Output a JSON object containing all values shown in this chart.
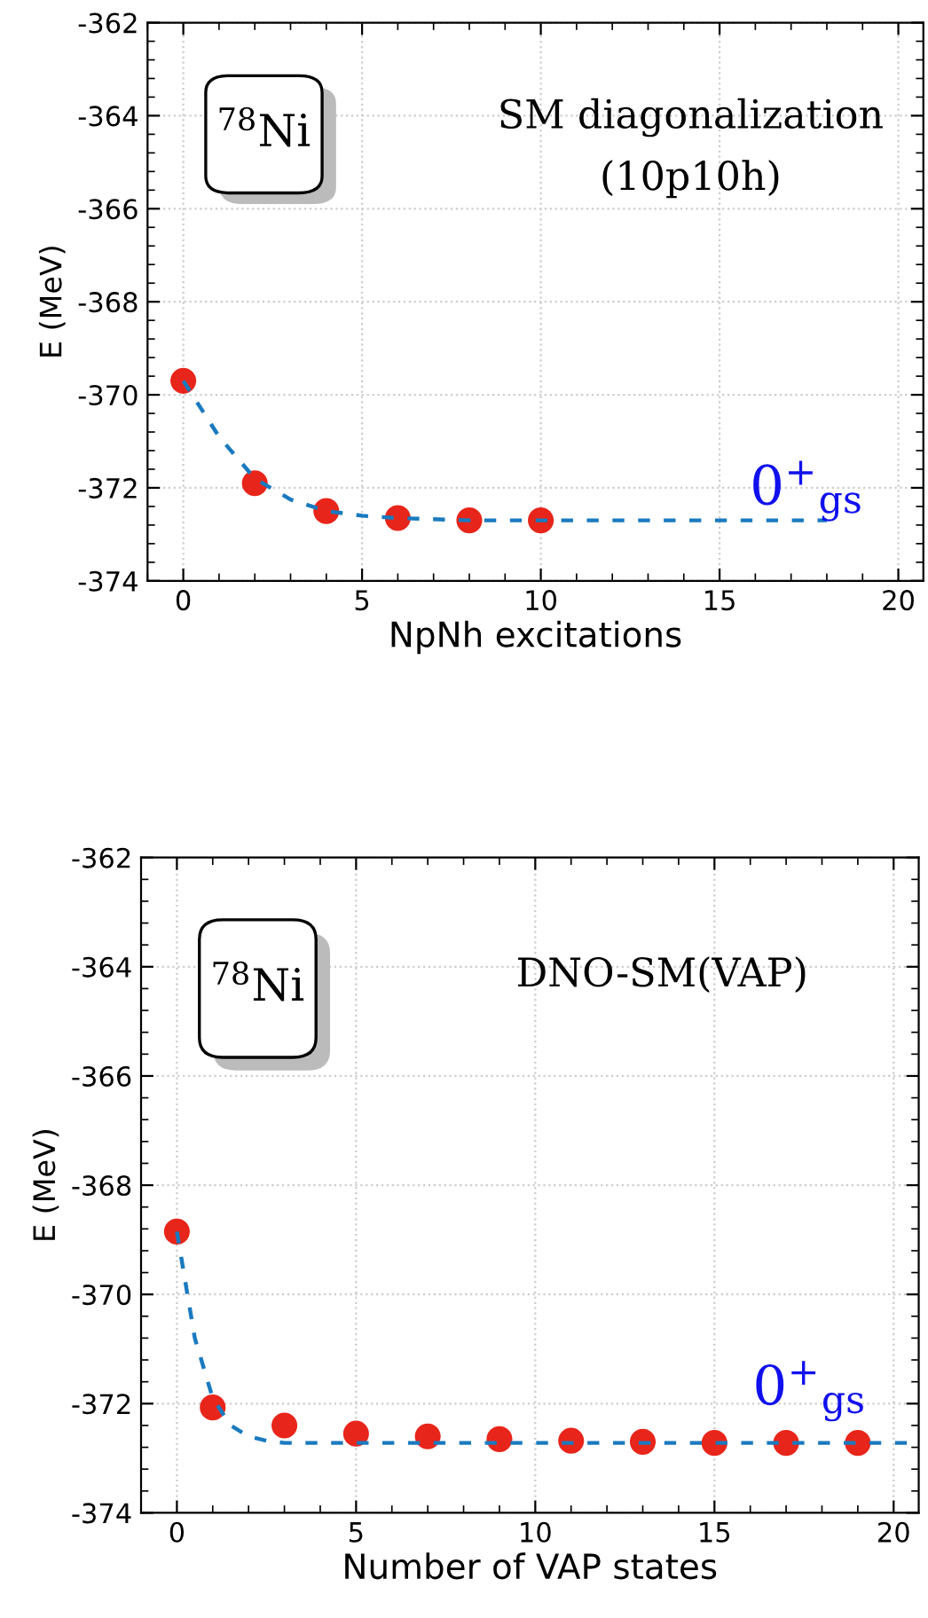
{
  "chart_data": [
    {
      "type": "scatter",
      "xlabel": "NpNh excitations",
      "ylabel": "E (MeV)",
      "xlim": [
        -1,
        20.7
      ],
      "ylim": [
        -374,
        -362
      ],
      "xticks": [
        0,
        5,
        10,
        15,
        20
      ],
      "yticks": [
        -374,
        -372,
        -370,
        -368,
        -366,
        -364,
        -362
      ],
      "grid": true,
      "marker": "circle",
      "annotations": [
        "$^{78}$Ni",
        "SM diagonalization",
        "(10p10h)",
        "0$^{+}$$_{gs}$"
      ],
      "series": [
        {
          "color": "#e8251a",
          "x": [
            0,
            2,
            4,
            6,
            8,
            10
          ],
          "values": [
            -369.7,
            -371.9,
            -372.5,
            -372.65,
            -372.7,
            -372.7
          ]
        },
        {
          "type": "line",
          "color": "#1a7abf",
          "line_style": "dashed",
          "marker": "none",
          "x": [
            0,
            1,
            2,
            3,
            4,
            5,
            6,
            8,
            10,
            18
          ],
          "values": [
            -369.7,
            -370.9,
            -371.8,
            -372.25,
            -372.5,
            -372.6,
            -372.65,
            -372.7,
            -372.7,
            -372.7
          ]
        }
      ]
    },
    {
      "type": "scatter",
      "xlabel": "Number of VAP states",
      "ylabel": "E (MeV)",
      "xlim": [
        -1,
        20.7
      ],
      "ylim": [
        -374,
        -362
      ],
      "xticks": [
        0,
        5,
        10,
        15,
        20
      ],
      "yticks": [
        -374,
        -372,
        -370,
        -368,
        -366,
        -364,
        -362
      ],
      "grid": true,
      "marker": "circle",
      "annotations": [
        "$^{78}$Ni",
        "DNO-SM(VAP)",
        "0$^{+}$$_{gs}$"
      ],
      "series": [
        {
          "color": "#e8251a",
          "x": [
            0,
            1,
            3,
            5,
            7,
            9,
            11,
            13,
            15,
            17,
            19
          ],
          "values": [
            -368.85,
            -372.07,
            -372.4,
            -372.55,
            -372.6,
            -372.65,
            -372.68,
            -372.7,
            -372.72,
            -372.72,
            -372.72
          ]
        },
        {
          "type": "line",
          "color": "#1a7abf",
          "line_style": "dashed",
          "marker": "none",
          "x": [
            0,
            0.5,
            1,
            1.5,
            2,
            2.5,
            3,
            5,
            10,
            20.7
          ],
          "values": [
            -368.85,
            -370.8,
            -371.9,
            -372.4,
            -372.6,
            -372.68,
            -372.72,
            -372.72,
            -372.72,
            -372.72
          ]
        }
      ]
    }
  ]
}
